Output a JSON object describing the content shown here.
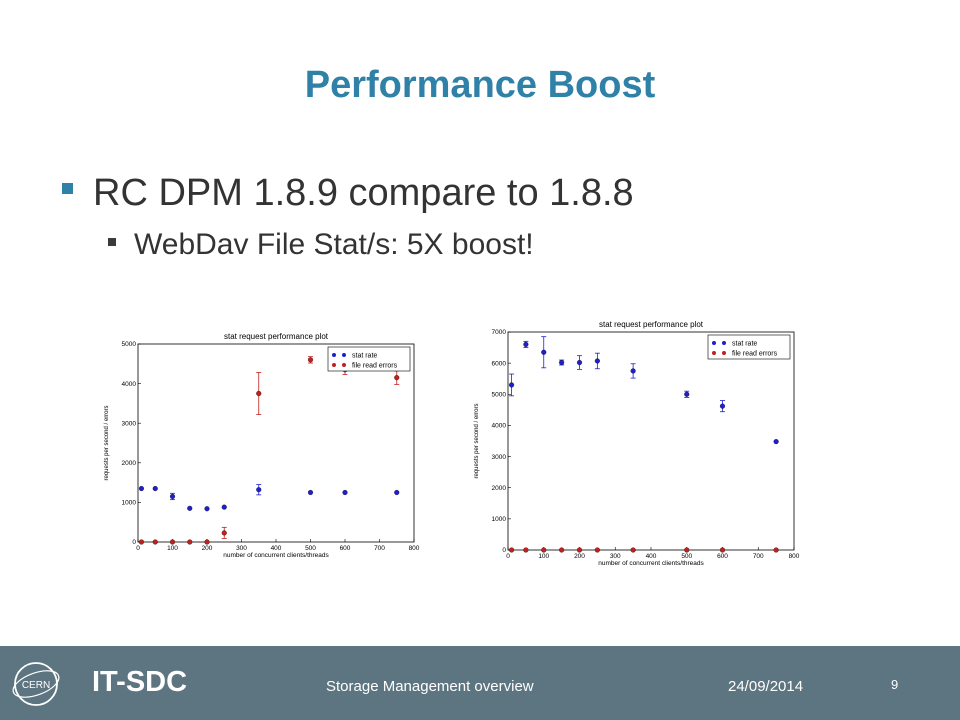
{
  "slide": {
    "title": "Performance Boost",
    "bullet1": "RC DPM 1.8.9 compare to 1.8.8",
    "bullet2": "WebDav File Stat/s: 5X boost!"
  },
  "footer": {
    "brand": "IT-SDC",
    "logo_text": "CERN",
    "subject": "Storage Management overview",
    "date": "24/09/2014",
    "page": "9"
  },
  "colors": {
    "accent": "#2f81a7",
    "footer_bg": "#5d7581",
    "stat_rate": "#1f1fd0",
    "file_read_errors": "#c0201e"
  },
  "chart_data": [
    {
      "type": "scatter",
      "title": "stat request performance plot",
      "xlabel": "number of concurrent clients/threads",
      "ylabel": "requests per second / errors",
      "xlim": [
        0,
        800
      ],
      "ylim": [
        0,
        5000
      ],
      "xticks": [
        0,
        100,
        200,
        300,
        400,
        500,
        600,
        700,
        800
      ],
      "yticks": [
        0,
        1000,
        2000,
        3000,
        4000,
        5000
      ],
      "grid": false,
      "legend": "top-right",
      "series": [
        {
          "name": "stat rate",
          "color": "#1f1fd0",
          "points": [
            {
              "x": 10,
              "y": 1350,
              "err": 0
            },
            {
              "x": 50,
              "y": 1350,
              "err": 0
            },
            {
              "x": 100,
              "y": 1150,
              "err": 80
            },
            {
              "x": 150,
              "y": 850,
              "err": 0
            },
            {
              "x": 200,
              "y": 840,
              "err": 0
            },
            {
              "x": 250,
              "y": 880,
              "err": 0
            },
            {
              "x": 350,
              "y": 1320,
              "err": 130
            },
            {
              "x": 500,
              "y": 1250,
              "err": 0
            },
            {
              "x": 600,
              "y": 1250,
              "err": 0
            },
            {
              "x": 750,
              "y": 1250,
              "err": 0
            }
          ]
        },
        {
          "name": "file read errors",
          "color": "#c0201e",
          "points": [
            {
              "x": 10,
              "y": 0,
              "err": 0
            },
            {
              "x": 50,
              "y": 0,
              "err": 0
            },
            {
              "x": 100,
              "y": 0,
              "err": 0
            },
            {
              "x": 150,
              "y": 0,
              "err": 0
            },
            {
              "x": 200,
              "y": 0,
              "err": 0
            },
            {
              "x": 250,
              "y": 230,
              "err": 140
            },
            {
              "x": 350,
              "y": 3750,
              "err": 530
            },
            {
              "x": 500,
              "y": 4600,
              "err": 80
            },
            {
              "x": 600,
              "y": 4350,
              "err": 120
            },
            {
              "x": 750,
              "y": 4150,
              "err": 170
            }
          ]
        }
      ]
    },
    {
      "type": "scatter",
      "title": "stat request performance plot",
      "xlabel": "number of concurrent clients/threads",
      "ylabel": "requests per second / errors",
      "xlim": [
        0,
        800
      ],
      "ylim": [
        0,
        7000
      ],
      "xticks": [
        0,
        100,
        200,
        300,
        400,
        500,
        600,
        700,
        800
      ],
      "yticks": [
        0,
        1000,
        2000,
        3000,
        4000,
        5000,
        6000,
        7000
      ],
      "grid": false,
      "legend": "top-right",
      "series": [
        {
          "name": "stat rate",
          "color": "#1f1fd0",
          "points": [
            {
              "x": 10,
              "y": 5300,
              "err": 350
            },
            {
              "x": 50,
              "y": 6600,
              "err": 100
            },
            {
              "x": 100,
              "y": 6350,
              "err": 500
            },
            {
              "x": 150,
              "y": 6020,
              "err": 80
            },
            {
              "x": 200,
              "y": 6020,
              "err": 220
            },
            {
              "x": 250,
              "y": 6070,
              "err": 250
            },
            {
              "x": 350,
              "y": 5750,
              "err": 230
            },
            {
              "x": 500,
              "y": 5000,
              "err": 100
            },
            {
              "x": 600,
              "y": 4620,
              "err": 180
            },
            {
              "x": 750,
              "y": 3480,
              "err": 0
            }
          ]
        },
        {
          "name": "file read errors",
          "color": "#c0201e",
          "points": [
            {
              "x": 10,
              "y": 0,
              "err": 0
            },
            {
              "x": 50,
              "y": 0,
              "err": 0
            },
            {
              "x": 100,
              "y": 0,
              "err": 0
            },
            {
              "x": 150,
              "y": 0,
              "err": 0
            },
            {
              "x": 200,
              "y": 0,
              "err": 0
            },
            {
              "x": 250,
              "y": 0,
              "err": 0
            },
            {
              "x": 350,
              "y": 0,
              "err": 0
            },
            {
              "x": 500,
              "y": 0,
              "err": 0
            },
            {
              "x": 600,
              "y": 0,
              "err": 0
            },
            {
              "x": 750,
              "y": 0,
              "err": 0
            }
          ]
        }
      ]
    }
  ]
}
